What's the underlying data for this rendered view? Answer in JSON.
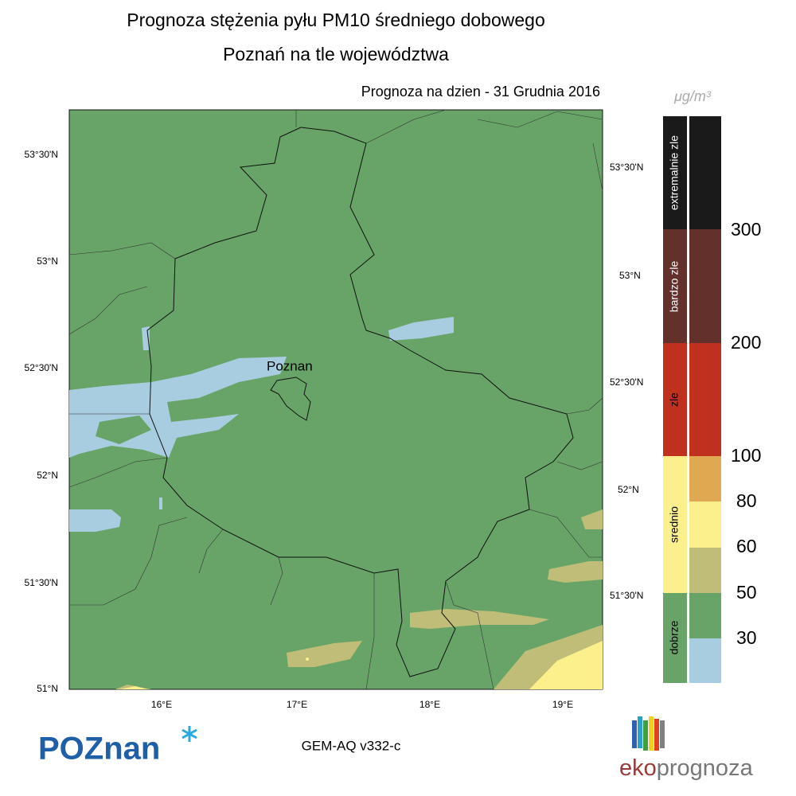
{
  "header": {
    "title": "Prognoza stężenia pyłu PM10 średniego dobowego",
    "subtitle": "Poznań na tle województwa",
    "date_line": "Prognoza na dzien -  31 Grudnia 2016"
  },
  "map": {
    "city_label": "Poznan",
    "lat_labels_left": [
      "53°30'N",
      "53°N",
      "52°30'N",
      "52°N",
      "51°30'N",
      "51°N"
    ],
    "lat_labels_right": [
      "53°30'N",
      "53°N",
      "52°30'N",
      "52°N",
      "51°30'N"
    ],
    "lon_labels": [
      "16°E",
      "17°E",
      "18°E",
      "19°E"
    ]
  },
  "legend": {
    "unit": "μg/m³",
    "categories": [
      "extremalnie zle",
      "bardzo zle",
      "zle",
      "srednio",
      "dobrze"
    ],
    "thresholds": [
      300,
      200,
      100,
      80,
      60,
      50,
      30
    ]
  },
  "footer": {
    "model": "GEM-AQ v332-c",
    "city_logo": "POZnan",
    "brand_prefix": "eko",
    "brand_suffix": "prognoza"
  }
}
